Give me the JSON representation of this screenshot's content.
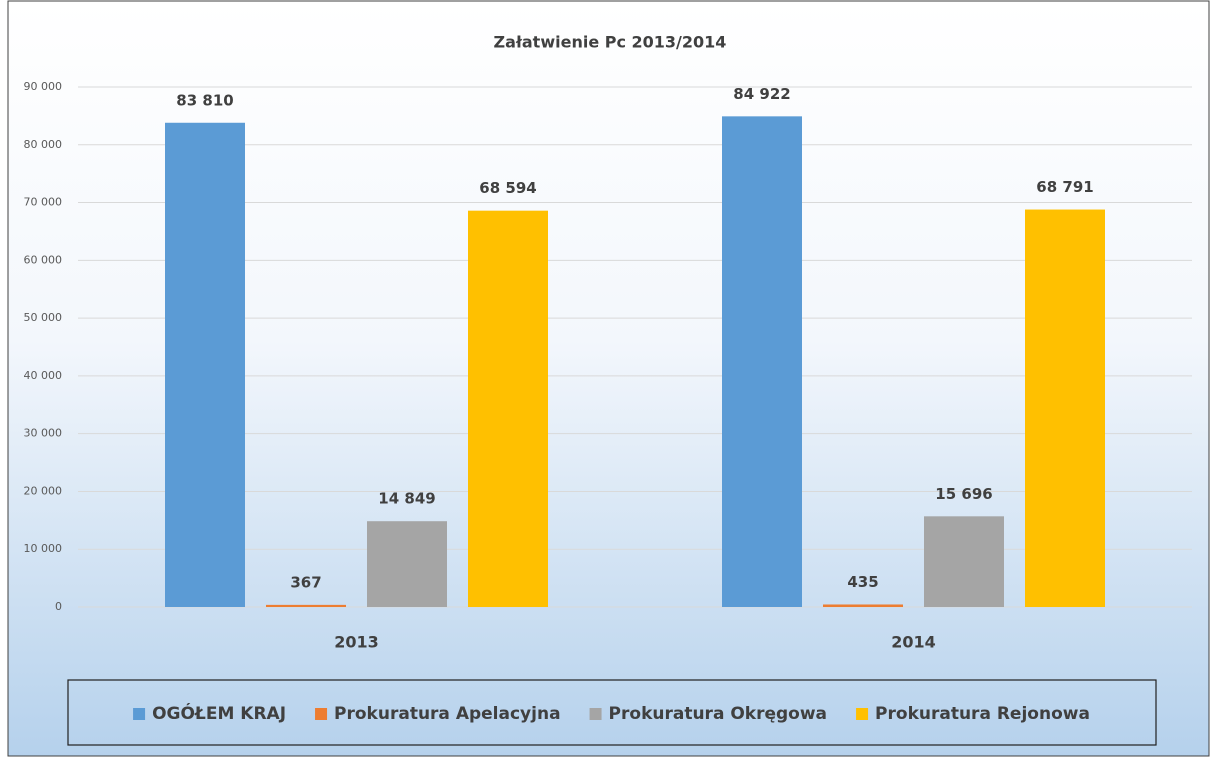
{
  "chart_data": {
    "type": "bar",
    "title": "Załatwienie Pc 2013/2014",
    "categories": [
      "2013",
      "2014"
    ],
    "series": [
      {
        "name": "OGÓŁEM KRAJ",
        "color": "#5b9bd5",
        "values": [
          83810,
          84922
        ],
        "value_labels": [
          "83 810",
          "84 922"
        ]
      },
      {
        "name": "Prokuratura Apelacyjna",
        "color": "#ed7d31",
        "values": [
          367,
          435
        ]
      },
      {
        "name": "Prokuratura Okręgowa",
        "color": "#a5a5a5",
        "values": [
          14849,
          15696
        ],
        "value_labels": [
          "14 849",
          "15 696"
        ]
      },
      {
        "name": "Prokuratura Rejonowa",
        "color": "#ffc000",
        "values": [
          68594,
          68791
        ],
        "value_labels": [
          "68 594",
          "68 791"
        ]
      }
    ],
    "ylim": [
      0,
      90000
    ],
    "yticks": [
      0,
      {
        "value": 10000,
        "label": "10 000"
      },
      {
        "value": 20000,
        "label": "20 000"
      },
      {
        "value": 30000,
        "label": "30 000"
      },
      {
        "value": 40000,
        "label": "40 000"
      },
      {
        "value": 50000,
        "label": "50 000"
      },
      {
        "value": 60000,
        "label": "60 000"
      },
      {
        "value": 70000,
        "label": "70 000"
      },
      {
        "value": 80000,
        "label": "80 000"
      },
      {
        "value": 90000,
        "label": "90 000"
      }
    ],
    "grid": true,
    "legend": "bottom"
  }
}
